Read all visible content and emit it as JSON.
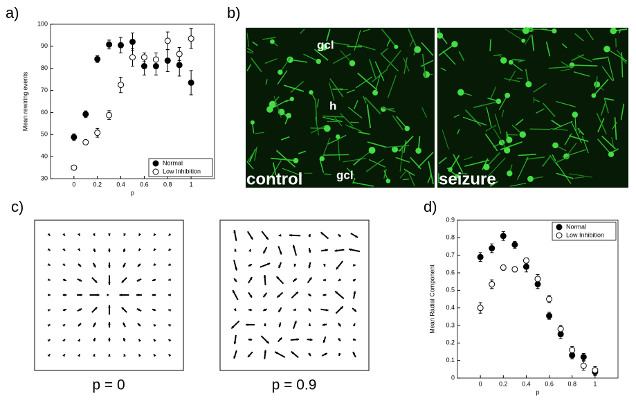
{
  "chart_data": [
    {
      "type": "scatter",
      "ylabel": "Mean rewiring events",
      "xlabel": "p",
      "x": [
        0,
        0.1,
        0.2,
        0.3,
        0.4,
        0.5,
        0.6,
        0.7,
        0.8,
        0.9,
        1
      ],
      "series": [
        {
          "name": "Normal",
          "color": "#000000",
          "filled": true,
          "values": [
            48.8,
            59.2,
            84.2,
            90.8,
            90.5,
            92,
            81,
            81,
            83.5,
            81.5,
            73.5
          ],
          "errors": [
            1.5,
            1.5,
            1.5,
            2,
            3.5,
            4,
            4,
            4,
            5,
            5,
            5.5
          ]
        },
        {
          "name": "Low Inhibition",
          "color": "#000000",
          "filled": false,
          "values": [
            35,
            46.5,
            50.8,
            58.8,
            72.5,
            85,
            85,
            84,
            92.5,
            86.5,
            93.5
          ],
          "errors": [
            1,
            1,
            2,
            2,
            3.5,
            4,
            2,
            3,
            4,
            3,
            4.5
          ]
        }
      ],
      "xlim": [
        -0.2,
        1.2
      ],
      "xticks": [
        0,
        0.2,
        0.4,
        0.6,
        0.8,
        1
      ],
      "ylim": [
        30,
        100
      ],
      "yticks": [
        30,
        40,
        50,
        60,
        70,
        80,
        90,
        100
      ],
      "legend": "lower right"
    },
    {
      "type": "scatter",
      "ylabel": "Mean Radial Component",
      "xlabel": "p",
      "x": [
        0,
        0.1,
        0.2,
        0.3,
        0.4,
        0.5,
        0.6,
        0.7,
        0.8,
        0.9,
        1
      ],
      "series": [
        {
          "name": "Normal",
          "color": "#000000",
          "filled": true,
          "values": [
            0.69,
            0.74,
            0.81,
            0.76,
            0.635,
            0.535,
            0.355,
            0.25,
            0.13,
            0.12,
            0.035
          ],
          "errors": [
            0.025,
            0.025,
            0.025,
            0.02,
            0.03,
            0.025,
            0.02,
            0.025,
            0.02,
            0.02,
            0.02
          ]
        },
        {
          "name": "Low Inhibition",
          "color": "#000000",
          "filled": false,
          "values": [
            0.4,
            0.535,
            0.63,
            0.62,
            0.67,
            0.565,
            0.45,
            0.28,
            0.16,
            0.07,
            0.045
          ],
          "errors": [
            0.03,
            0.025,
            0.015,
            0.015,
            0.015,
            0.025,
            0.02,
            0.02,
            0.02,
            0.025,
            0.02
          ]
        }
      ],
      "xlim": [
        -0.2,
        1.2
      ],
      "xticks": [
        0,
        0.2,
        0.4,
        0.6,
        0.8,
        1
      ],
      "ylim": [
        0,
        0.9
      ],
      "yticks": [
        0,
        0.1,
        0.2,
        0.3,
        0.4,
        0.5,
        0.6,
        0.7,
        0.8,
        0.9
      ],
      "legend": "upper right"
    }
  ],
  "panel_labels": [
    "a)",
    "b)",
    "c)",
    "d)"
  ],
  "micrograph": {
    "labels": [
      "gcl",
      "h",
      "gcl"
    ],
    "conditions": [
      "control",
      "seizure"
    ]
  },
  "vector_fields": {
    "captions": [
      "p = 0",
      "p = 0.9"
    ]
  }
}
